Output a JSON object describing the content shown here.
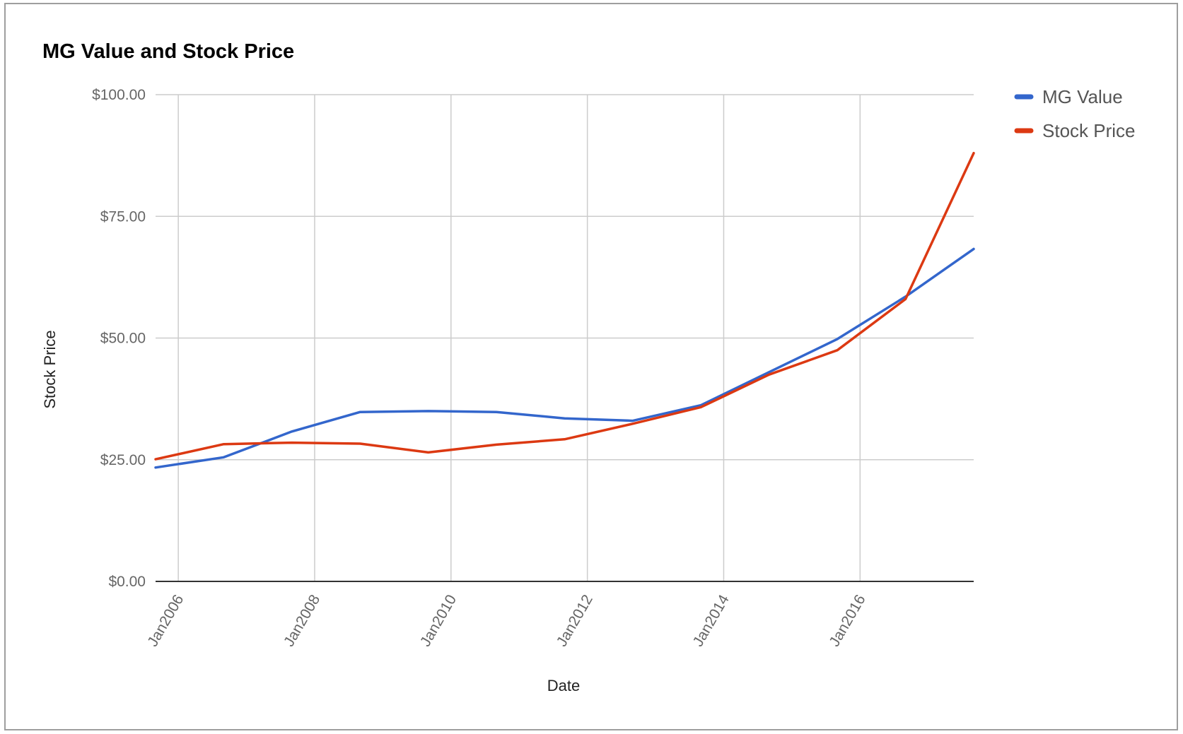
{
  "chart_data": {
    "type": "line",
    "title": "MG Value and Stock Price",
    "xlabel": "Date",
    "ylabel": "Stock Price",
    "x_tick_labels": [
      "Jan2006",
      "Jan2008",
      "Jan2010",
      "Jan2012",
      "Jan2014",
      "Jan2016"
    ],
    "x_tick_dates": [
      "2006-01",
      "2008-01",
      "2010-01",
      "2012-01",
      "2014-01",
      "2016-01"
    ],
    "x_range": [
      "2005-09",
      "2017-09"
    ],
    "y_tick_labels": [
      "$0.00",
      "$25.00",
      "$50.00",
      "$75.00",
      "$100.00"
    ],
    "y_ticks": [
      0,
      25,
      50,
      75,
      100
    ],
    "ylim": [
      0,
      100
    ],
    "grid": true,
    "legend_position": "right",
    "x": [
      "2005-09",
      "2006-09",
      "2007-09",
      "2008-09",
      "2009-09",
      "2010-09",
      "2011-09",
      "2012-09",
      "2013-09",
      "2014-09",
      "2015-09",
      "2016-09",
      "2017-09"
    ],
    "series": [
      {
        "name": "MG Value",
        "color": "#3366cc",
        "values": [
          23.4,
          25.5,
          30.8,
          34.8,
          35.0,
          34.8,
          33.5,
          33.0,
          36.2,
          43.0,
          49.8,
          58.5,
          68.3
        ]
      },
      {
        "name": "Stock Price",
        "color": "#dc3912",
        "values": [
          25.1,
          28.2,
          28.5,
          28.3,
          26.5,
          28.1,
          29.2,
          32.4,
          35.8,
          42.5,
          47.5,
          58.0,
          88.0
        ]
      }
    ]
  }
}
